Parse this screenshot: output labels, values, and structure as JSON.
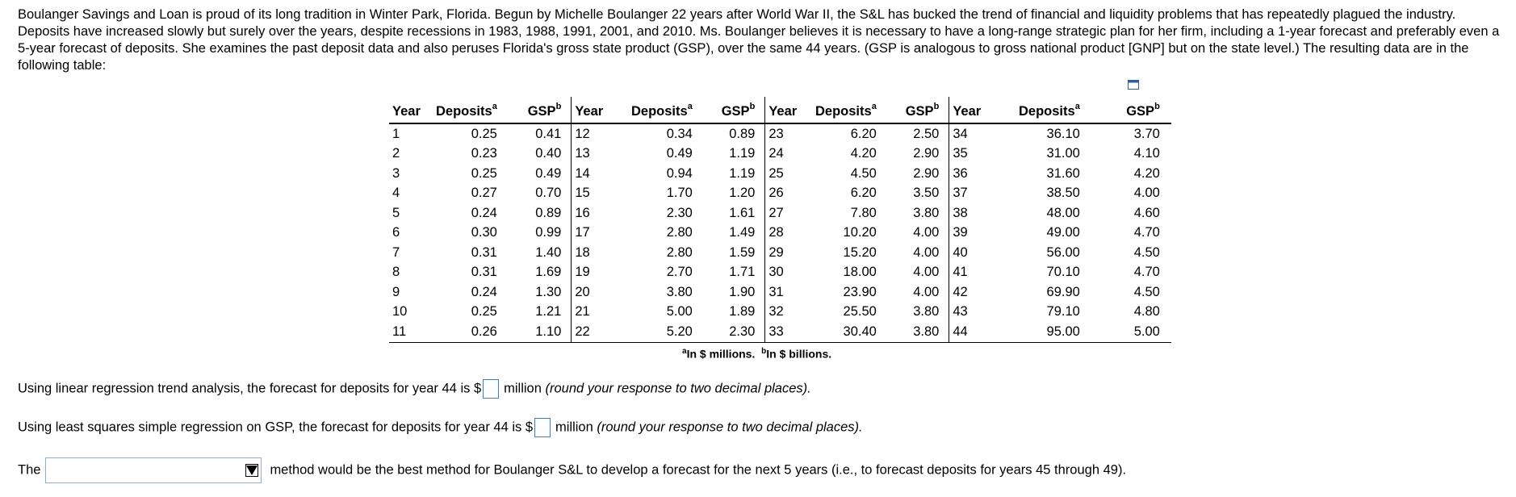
{
  "intro": "Boulanger Savings and Loan is proud of its long tradition in Winter Park, Florida. Begun by Michelle Boulanger 22 years after World War II, the S&L has bucked the trend of financial and liquidity problems that has repeatedly plagued the industry. Deposits have increased slowly but surely over the years, despite recessions in 1983, 1988, 1991, 2001, and 2010. Ms. Boulanger believes it is necessary to have a long-range strategic plan for her firm, including a 1-year forecast and preferably even a 5-year forecast of deposits. She examines the past deposit data and also peruses Florida's gross state product (GSP), over the same 44 years. (GSP is analogous to gross national product [GNP] but on the state level.) The resulting data are in the following table:",
  "icons": {
    "copy": "copy-table-icon"
  },
  "table": {
    "headers": {
      "year": "Year",
      "deposits": "Deposits",
      "deposits_sup": "a",
      "gsp": "GSP",
      "gsp_sup": "b"
    },
    "rows": [
      [
        "1",
        "0.25",
        "0.41",
        "12",
        "0.34",
        "0.89",
        "23",
        "6.20",
        "2.50",
        "34",
        "36.10",
        "3.70"
      ],
      [
        "2",
        "0.23",
        "0.40",
        "13",
        "0.49",
        "1.19",
        "24",
        "4.20",
        "2.90",
        "35",
        "31.00",
        "4.10"
      ],
      [
        "3",
        "0.25",
        "0.49",
        "14",
        "0.94",
        "1.19",
        "25",
        "4.50",
        "2.90",
        "36",
        "31.60",
        "4.20"
      ],
      [
        "4",
        "0.27",
        "0.70",
        "15",
        "1.70",
        "1.20",
        "26",
        "6.20",
        "3.50",
        "37",
        "38.50",
        "4.00"
      ],
      [
        "5",
        "0.24",
        "0.89",
        "16",
        "2.30",
        "1.61",
        "27",
        "7.80",
        "3.80",
        "38",
        "48.00",
        "4.60"
      ],
      [
        "6",
        "0.30",
        "0.99",
        "17",
        "2.80",
        "1.49",
        "28",
        "10.20",
        "4.00",
        "39",
        "49.00",
        "4.70"
      ],
      [
        "7",
        "0.31",
        "1.40",
        "18",
        "2.80",
        "1.59",
        "29",
        "15.20",
        "4.00",
        "40",
        "56.00",
        "4.50"
      ],
      [
        "8",
        "0.31",
        "1.69",
        "19",
        "2.70",
        "1.71",
        "30",
        "18.00",
        "4.00",
        "41",
        "70.10",
        "4.70"
      ],
      [
        "9",
        "0.24",
        "1.30",
        "20",
        "3.80",
        "1.90",
        "31",
        "23.90",
        "4.00",
        "42",
        "69.90",
        "4.50"
      ],
      [
        "10",
        "0.25",
        "1.21",
        "21",
        "5.00",
        "1.89",
        "32",
        "25.50",
        "3.80",
        "43",
        "79.10",
        "4.80"
      ],
      [
        "11",
        "0.26",
        "1.10",
        "22",
        "5.20",
        "2.30",
        "33",
        "30.40",
        "3.80",
        "44",
        "95.00",
        "5.00"
      ]
    ],
    "footnote_a_sup": "a",
    "footnote_a": "In $ millions.",
    "footnote_b_sup": "b",
    "footnote_b": "In $ billions."
  },
  "questions": {
    "q1_before": "Using linear regression trend analysis, the forecast for deposits for year 44 is $",
    "q1_unit": "million",
    "q1_note": "(round your response to two decimal places).",
    "q1_value": "",
    "q2_before": "Using least squares simple regression on GSP, the forecast for deposits for year 44 is $",
    "q2_unit": "million",
    "q2_note": "(round your response to two decimal places).",
    "q2_value": "",
    "q3_before": "The",
    "q3_after": "method would be the best method for Boulanger S&L to develop a forecast for the next 5 years (i.e., to forecast deposits for years 45 through 49).",
    "q3_selected": ""
  }
}
